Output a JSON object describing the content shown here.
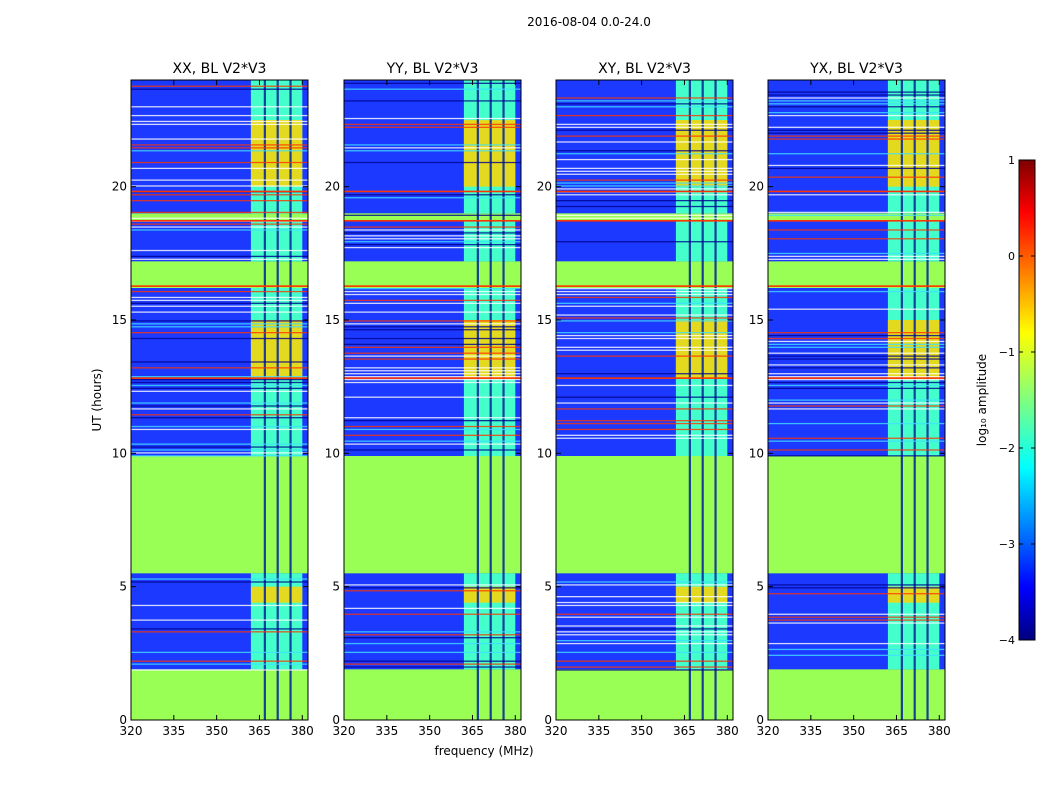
{
  "chart_data": {
    "type": "heatmap",
    "title": "2016-08-04 0.0-24.0",
    "xlabel": "frequency (MHz)",
    "ylabel": "UT (hours)",
    "xlim": [
      320,
      382
    ],
    "ylim": [
      0,
      24
    ],
    "xticks": [
      320,
      335,
      350,
      365,
      380
    ],
    "yticks": [
      0,
      5,
      10,
      15,
      20
    ],
    "panels": [
      {
        "title": "XX, BL V2*V3"
      },
      {
        "title": "YY, BL V2*V3"
      },
      {
        "title": "XY, BL V2*V3"
      },
      {
        "title": "YX, BL V2*V3"
      }
    ],
    "colorbar": {
      "label": "log₁₀ amplitude",
      "min": -4,
      "max": 1,
      "ticks": [
        -4,
        -3,
        -2,
        -1,
        0,
        1
      ],
      "tick_labels": [
        "−4",
        "−3",
        "−2",
        "−1",
        "0",
        "1"
      ],
      "colormap": "jet"
    },
    "flagged_time_ranges_hours": [
      [
        0.0,
        1.9
      ],
      [
        5.5,
        9.9
      ],
      [
        16.2,
        17.2
      ],
      [
        18.7,
        19.0
      ]
    ],
    "band_freq_range_mhz": [
      362,
      380
    ],
    "high_amplitude_time_ranges_hours": [
      [
        4.4,
        5.0
      ],
      [
        12.8,
        15.0
      ],
      [
        20.0,
        22.5
      ]
    ],
    "background_log_amplitude": -3.5,
    "flagged_log_amplitude": -1.2
  },
  "colors": {
    "flagged": "#99ff55",
    "background": "#1c3aff",
    "band": "#44ffcc",
    "band_hot": "#ffd400",
    "line_red": "#ff3300"
  }
}
